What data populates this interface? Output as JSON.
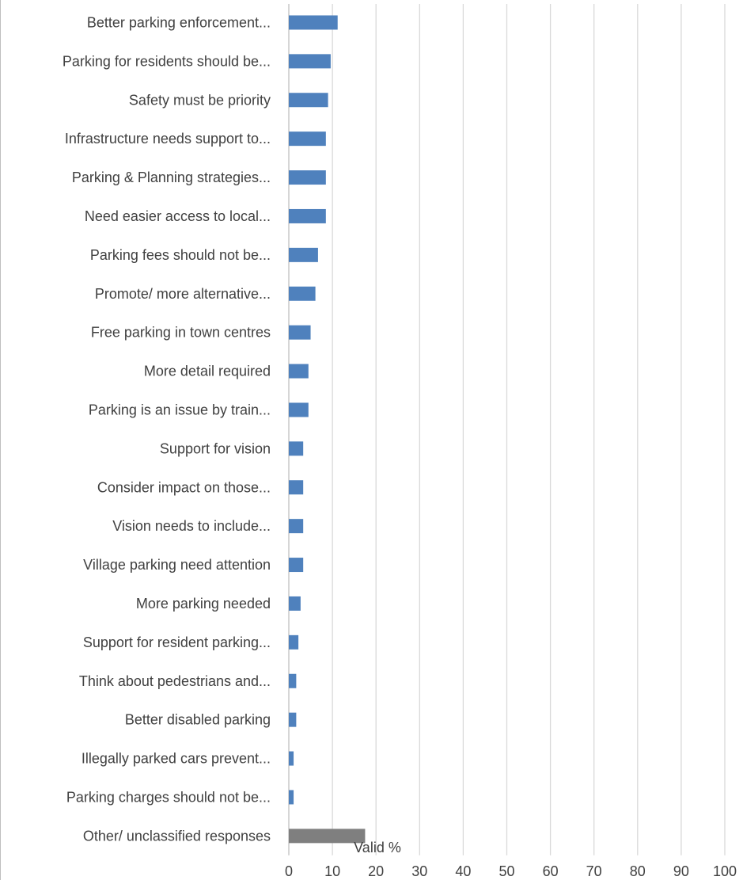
{
  "chart_data": {
    "type": "bar",
    "orientation": "horizontal",
    "categories": [
      "Better parking enforcement...",
      "Parking for residents should be...",
      "Safety must be priority",
      "Infrastructure  needs support to...",
      "Parking & Planning strategies...",
      "Need easier access to local...",
      "Parking fees should not be...",
      "Promote/ more alternative...",
      "Free parking in town centres",
      "More detail required",
      "Parking is an issue by train...",
      "Support for vision",
      "Consider impact on those...",
      "Vision needs to include...",
      "Village parking need attention",
      "More parking needed",
      "Support for resident parking...",
      "Think about pedestrians and...",
      "Better disabled parking",
      "Illegally parked cars prevent...",
      "Parking charges should not be...",
      "Other/ unclassified responses"
    ],
    "values": [
      11.2,
      9.6,
      9.0,
      8.5,
      8.5,
      8.5,
      6.7,
      6.1,
      5.0,
      4.5,
      4.5,
      3.3,
      3.3,
      3.3,
      3.3,
      2.7,
      2.2,
      1.7,
      1.7,
      1.1,
      1.1,
      17.5
    ],
    "bar_colors": [
      "#4f81bd",
      "#4f81bd",
      "#4f81bd",
      "#4f81bd",
      "#4f81bd",
      "#4f81bd",
      "#4f81bd",
      "#4f81bd",
      "#4f81bd",
      "#4f81bd",
      "#4f81bd",
      "#4f81bd",
      "#4f81bd",
      "#4f81bd",
      "#4f81bd",
      "#4f81bd",
      "#4f81bd",
      "#4f81bd",
      "#4f81bd",
      "#4f81bd",
      "#4f81bd",
      "#7f7f7f"
    ],
    "xlabel": "Valid %",
    "xlim": [
      0,
      100
    ],
    "xticks": [
      0,
      10,
      20,
      30,
      40,
      50,
      60,
      70,
      80,
      90,
      100
    ],
    "grid": "vertical",
    "legend": "none"
  }
}
